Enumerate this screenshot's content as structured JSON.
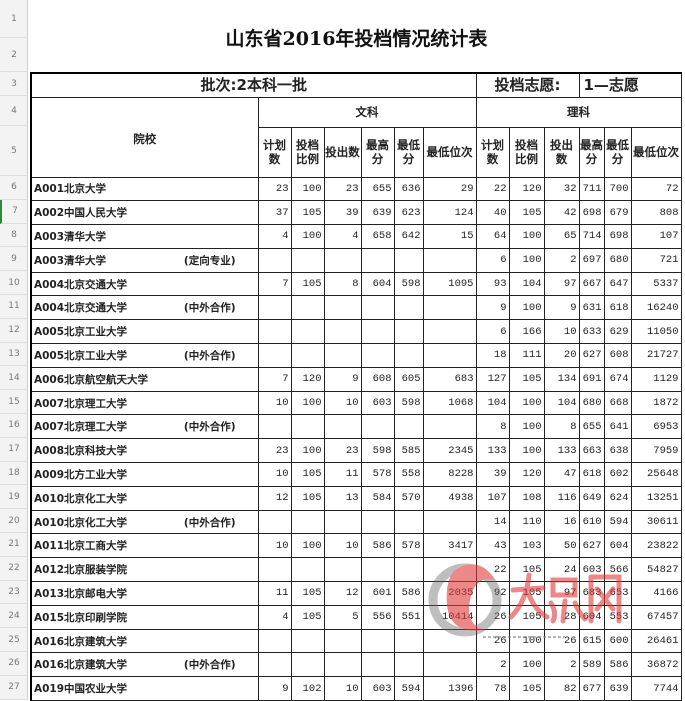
{
  "title": "山东省2016年投档情况统计表",
  "batch_label": "批次:2本科一批",
  "volunteer_label": "投档志愿:",
  "volunteer_value": "1—志愿",
  "school_header": "院校",
  "arts_header": "文科",
  "science_header": "理科",
  "sub_headers": [
    "计划数",
    "投档比例",
    "投出数",
    "最高分",
    "最低分",
    "最低位次"
  ],
  "row_numbers": [
    "1",
    "2",
    "3",
    "4",
    "5",
    "6",
    "7",
    "8",
    "9",
    "10",
    "11",
    "12",
    "13",
    "14",
    "15",
    "16",
    "17",
    "18",
    "19",
    "20",
    "21",
    "22",
    "23",
    "24",
    "25",
    "26",
    "27"
  ],
  "rows": [
    {
      "name": "A001北京大学",
      "note": "",
      "arts": [
        "23",
        "100",
        "23",
        "655",
        "636",
        "29"
      ],
      "sci": [
        "22",
        "120",
        "32",
        "711",
        "700",
        "72"
      ]
    },
    {
      "name": "A002中国人民大学",
      "note": "",
      "arts": [
        "37",
        "105",
        "39",
        "639",
        "623",
        "124"
      ],
      "sci": [
        "40",
        "105",
        "42",
        "698",
        "679",
        "808"
      ]
    },
    {
      "name": "A003清华大学",
      "note": "",
      "arts": [
        "4",
        "100",
        "4",
        "658",
        "642",
        "15"
      ],
      "sci": [
        "64",
        "100",
        "65",
        "714",
        "698",
        "107"
      ]
    },
    {
      "name": "A003清华大学",
      "note": "(定向专业)",
      "arts": [
        "",
        "",
        "",
        "",
        "",
        ""
      ],
      "sci": [
        "6",
        "100",
        "2",
        "697",
        "680",
        "721"
      ]
    },
    {
      "name": "A004北京交通大学",
      "note": "",
      "arts": [
        "7",
        "105",
        "8",
        "604",
        "598",
        "1095"
      ],
      "sci": [
        "93",
        "104",
        "97",
        "667",
        "647",
        "5337"
      ]
    },
    {
      "name": "A004北京交通大学",
      "note": "(中外合作)",
      "arts": [
        "",
        "",
        "",
        "",
        "",
        ""
      ],
      "sci": [
        "9",
        "100",
        "9",
        "631",
        "618",
        "16240"
      ]
    },
    {
      "name": "A005北京工业大学",
      "note": "",
      "arts": [
        "",
        "",
        "",
        "",
        "",
        ""
      ],
      "sci": [
        "6",
        "166",
        "10",
        "633",
        "629",
        "11050"
      ]
    },
    {
      "name": "A005北京工业大学",
      "note": "(中外合作)",
      "arts": [
        "",
        "",
        "",
        "",
        "",
        ""
      ],
      "sci": [
        "18",
        "111",
        "20",
        "627",
        "608",
        "21727"
      ]
    },
    {
      "name": "A006北京航空航天大学",
      "note": "",
      "arts": [
        "7",
        "120",
        "9",
        "608",
        "605",
        "683"
      ],
      "sci": [
        "127",
        "105",
        "134",
        "691",
        "674",
        "1129"
      ]
    },
    {
      "name": "A007北京理工大学",
      "note": "",
      "arts": [
        "10",
        "100",
        "10",
        "603",
        "598",
        "1068"
      ],
      "sci": [
        "104",
        "100",
        "104",
        "680",
        "668",
        "1872"
      ]
    },
    {
      "name": "A007北京理工大学",
      "note": "(中外合作)",
      "arts": [
        "",
        "",
        "",
        "",
        "",
        ""
      ],
      "sci": [
        "8",
        "100",
        "8",
        "655",
        "641",
        "6953"
      ]
    },
    {
      "name": "A008北京科技大学",
      "note": "",
      "arts": [
        "23",
        "100",
        "23",
        "598",
        "585",
        "2345"
      ],
      "sci": [
        "133",
        "100",
        "133",
        "663",
        "638",
        "7959"
      ]
    },
    {
      "name": "A009北方工业大学",
      "note": "",
      "arts": [
        "10",
        "105",
        "11",
        "578",
        "558",
        "8228"
      ],
      "sci": [
        "39",
        "120",
        "47",
        "618",
        "602",
        "25648"
      ]
    },
    {
      "name": "A010北京化工大学",
      "note": "",
      "arts": [
        "12",
        "105",
        "13",
        "584",
        "570",
        "4938"
      ],
      "sci": [
        "107",
        "108",
        "116",
        "649",
        "624",
        "13251"
      ]
    },
    {
      "name": "A010北京化工大学",
      "note": "(中外合作)",
      "arts": [
        "",
        "",
        "",
        "",
        "",
        ""
      ],
      "sci": [
        "14",
        "110",
        "16",
        "610",
        "594",
        "30611"
      ]
    },
    {
      "name": "A011北京工商大学",
      "note": "",
      "arts": [
        "10",
        "100",
        "10",
        "586",
        "578",
        "3417"
      ],
      "sci": [
        "43",
        "103",
        "50",
        "627",
        "604",
        "23822"
      ]
    },
    {
      "name": "A012北京服装学院",
      "note": "",
      "arts": [
        "",
        "",
        "",
        "",
        "",
        ""
      ],
      "sci": [
        "22",
        "105",
        "24",
        "603",
        "566",
        "54827"
      ]
    },
    {
      "name": "A013北京邮电大学",
      "note": "",
      "arts": [
        "11",
        "105",
        "12",
        "601",
        "586",
        "2035"
      ],
      "sci": [
        "92",
        "105",
        "97",
        "683",
        "653",
        "4166"
      ]
    },
    {
      "name": "A015北京印刷学院",
      "note": "",
      "arts": [
        "4",
        "105",
        "5",
        "556",
        "551",
        "10414"
      ],
      "sci": [
        "26",
        "105",
        "28",
        "604",
        "553",
        "67457"
      ]
    },
    {
      "name": "A016北京建筑大学",
      "note": "",
      "arts": [
        "",
        "",
        "",
        "",
        "",
        ""
      ],
      "sci": [
        "26",
        "100",
        "26",
        "615",
        "600",
        "26461"
      ]
    },
    {
      "name": "A016北京建筑大学",
      "note": "(中外合作)",
      "arts": [
        "",
        "",
        "",
        "",
        "",
        ""
      ],
      "sci": [
        "2",
        "100",
        "2",
        "589",
        "586",
        "36872"
      ]
    },
    {
      "name": "A019中国农业大学",
      "note": "",
      "arts": [
        "9",
        "102",
        "10",
        "603",
        "594",
        "1396"
      ],
      "sci": [
        "78",
        "105",
        "82",
        "677",
        "639",
        "7744"
      ]
    }
  ],
  "watermark": {
    "text": "大众网",
    "url": "www.dzwww.com",
    "color": "#e23a3a"
  }
}
